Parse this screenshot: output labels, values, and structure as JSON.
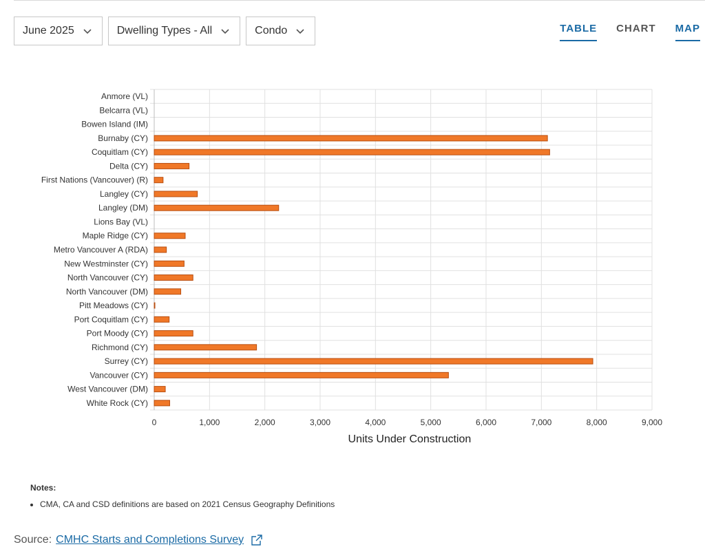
{
  "filters": [
    {
      "label": "June 2025"
    },
    {
      "label": "Dwelling Types - All"
    },
    {
      "label": "Condo"
    }
  ],
  "view_tabs": [
    {
      "label": "TABLE"
    },
    {
      "label": "CHART"
    },
    {
      "label": "MAP"
    }
  ],
  "notes": {
    "title": "Notes:",
    "items": [
      "CMA, CA and CSD definitions are based on 2021 Census Geography Definitions"
    ]
  },
  "source": {
    "prefix": "Source:",
    "link_text": "CMHC Starts and Completions Survey"
  },
  "colors": {
    "bar_fill": "#f07828",
    "bar_stroke": "#b84e10",
    "accent": "#1a6aa5"
  },
  "icons": {
    "filter_dropdown": "chevron-down-icon",
    "source_link": "external-link-icon"
  },
  "chart_data": {
    "type": "bar",
    "orientation": "horizontal",
    "categories": [
      "Anmore (VL)",
      "Belcarra (VL)",
      "Bowen Island (IM)",
      "Burnaby (CY)",
      "Coquitlam (CY)",
      "Delta (CY)",
      "First Nations (Vancouver) (R)",
      "Langley (CY)",
      "Langley (DM)",
      "Lions Bay (VL)",
      "Maple Ridge (CY)",
      "Metro Vancouver A (RDA)",
      "New Westminster (CY)",
      "North Vancouver (CY)",
      "North Vancouver (DM)",
      "Pitt Meadows (CY)",
      "Port Coquitlam (CY)",
      "Port Moody (CY)",
      "Richmond (CY)",
      "Surrey (CY)",
      "Vancouver (CY)",
      "West Vancouver (DM)",
      "White Rock (CY)"
    ],
    "values": [
      0,
      0,
      0,
      7110,
      7150,
      630,
      160,
      780,
      2250,
      0,
      560,
      220,
      540,
      700,
      480,
      10,
      270,
      700,
      1850,
      7930,
      5320,
      200,
      280
    ],
    "title": "",
    "xlabel": "Units Under Construction",
    "ylabel": "",
    "xlim": [
      0,
      9000
    ],
    "xticks": [
      0,
      1000,
      2000,
      3000,
      4000,
      5000,
      6000,
      7000,
      8000,
      9000
    ],
    "xtick_labels": [
      "0",
      "1,000",
      "2,000",
      "3,000",
      "4,000",
      "5,000",
      "6,000",
      "7,000",
      "8,000",
      "9,000"
    ],
    "grid": true,
    "legend": "none"
  }
}
